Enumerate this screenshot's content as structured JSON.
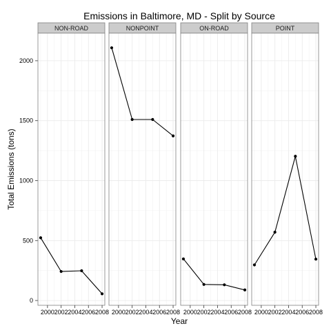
{
  "chart_data": {
    "type": "line",
    "title": "Emissions in Baltimore, MD - Split by Source",
    "xlabel": "Year",
    "ylabel": "Total Emissions (tons)",
    "x_ticks": [
      "2000",
      "2002",
      "2004",
      "2006",
      "2008"
    ],
    "y_ticks": [
      "0",
      "500",
      "1000",
      "1500",
      "2000"
    ],
    "y_tick_values": [
      0,
      500,
      1000,
      1500,
      2000
    ],
    "xlim": [
      1998.6,
      2008.4
    ],
    "ylim": [
      -40,
      2230
    ],
    "grid": true,
    "legend": "none",
    "panels": [
      {
        "name": "NON-ROAD",
        "x": [
          1999,
          2002,
          2005,
          2008
        ],
        "y": [
          523,
          242,
          248,
          56
        ]
      },
      {
        "name": "NONPOINT",
        "x": [
          1999,
          2002,
          2005,
          2008
        ],
        "y": [
          2108,
          1510,
          1510,
          1373
        ]
      },
      {
        "name": "ON-ROAD",
        "x": [
          1999,
          2002,
          2005,
          2008
        ],
        "y": [
          347,
          134,
          131,
          88
        ]
      },
      {
        "name": "POINT",
        "x": [
          1999,
          2002,
          2005,
          2008
        ],
        "y": [
          297,
          570,
          1203,
          345
        ]
      }
    ],
    "colors": {
      "panel_background": "#ffffff",
      "panel_border": "#7f7f7f",
      "grid": "#ebebeb",
      "strip_background": "#cccccc",
      "line": "#000000",
      "point": "#000000"
    }
  }
}
